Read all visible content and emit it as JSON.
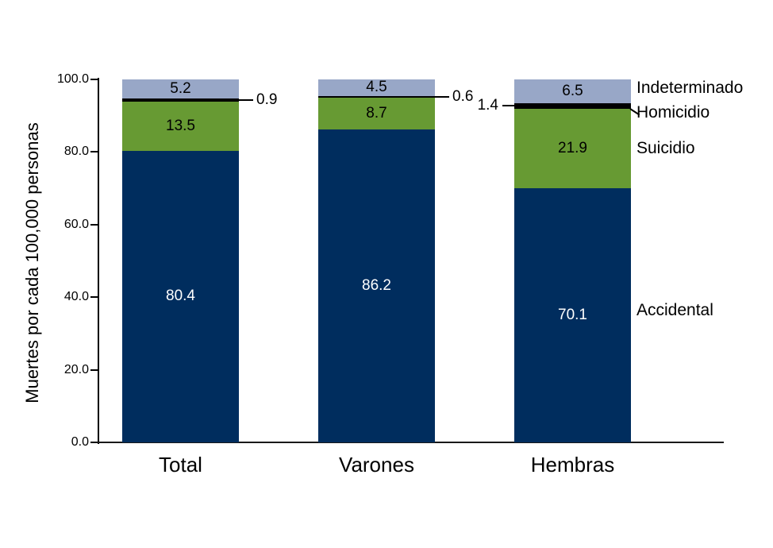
{
  "chart_data": {
    "type": "bar",
    "stacked": true,
    "categories": [
      "Total",
      "Varones",
      "Hembras"
    ],
    "series": [
      {
        "name": "Accidental",
        "color": "#002d5e",
        "label_color": "#ffffff",
        "values": [
          80.4,
          86.2,
          70.1
        ]
      },
      {
        "name": "Suicidio",
        "color": "#679a33",
        "label_color": "#000000",
        "values": [
          13.5,
          8.7,
          21.9
        ]
      },
      {
        "name": "Homicidio",
        "color": "#000000",
        "label_color": "#000000",
        "values": [
          0.9,
          0.6,
          1.4
        ],
        "label_placement": "outside",
        "callout_sides": [
          "right",
          "right",
          "left"
        ]
      },
      {
        "name": "Indeterminado",
        "color": "#98a7c7",
        "label_color": "#000000",
        "values": [
          5.2,
          4.5,
          6.5
        ]
      }
    ],
    "ylabel": "Muertes por cada 100,000 personas",
    "xlabel": "",
    "ylim": [
      0,
      100
    ],
    "yticks": [
      0,
      20,
      40,
      60,
      80,
      100
    ],
    "ytick_labels": [
      "0.0",
      "20.0",
      "40.0",
      "60.0",
      "80.0",
      "100.0"
    ],
    "grid": false,
    "legend_position": "right"
  }
}
